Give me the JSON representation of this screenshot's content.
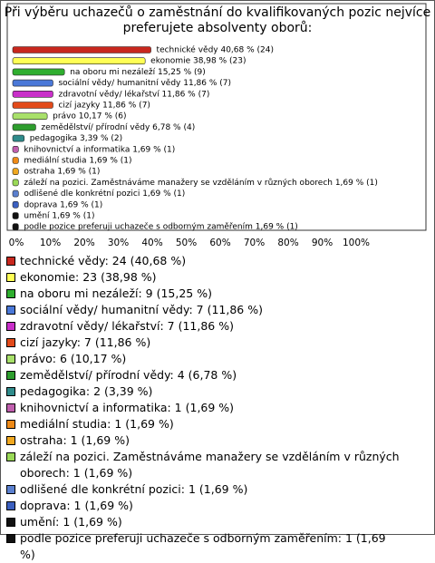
{
  "chart_data": {
    "type": "bar",
    "orientation": "horizontal",
    "title": [
      "Při výběru uchazečů o zaměstnání do kvalifikovaných pozic nejvíce",
      "preferujete absolventy oborů:"
    ],
    "values": [
      40.68,
      38.98,
      15.25,
      11.86,
      11.86,
      11.86,
      10.17,
      6.78,
      3.39,
      1.69,
      1.69,
      1.69,
      1.69,
      1.69,
      1.69,
      1.69,
      1.69
    ],
    "value_labels": [
      "technické vědy 40,68 % (24)",
      "ekonomie 38,98 % (23)",
      "na oboru mi nezáleží 15,25 % (9)",
      "sociální vědy/ humanitní vědy 11,86 % (7)",
      "zdravotní vědy/ lékařství 11,86 % (7)",
      "cizí jazyky 11,86 % (7)",
      "právo 10,17 % (6)",
      "zemědělství/ přírodní vědy 6,78 % (4)",
      "pedagogika 3,39 % (2)",
      "knihovnictví a informatika 1,69 % (1)",
      "mediální studia 1,69 % (1)",
      "ostraha 1,69 % (1)",
      "záleží na pozici. Zaměstnáváme manažery se vzděláním v různých oborech 1,69 % (1)",
      "odlišené dle konkrétní pozici 1,69 % (1)",
      "doprava 1,69 % (1)",
      "umění 1,69 % (1)",
      "podle pozice preferuji uchazeče s odborným zaměřením 1,69 % (1)"
    ],
    "legend_labels": [
      "technické vědy: 24 (40,68 %)",
      "ekonomie: 23 (38,98 %)",
      "na oboru mi nezáleží: 9 (15,25 %)",
      "sociální vědy/ humanitní vědy: 7 (11,86 %)",
      "zdravotní vědy/ lékařství: 7 (11,86 %)",
      "cizí jazyky: 7 (11,86 %)",
      "právo: 6 (10,17 %)",
      "zemědělství/ přírodní vědy: 4 (6,78 %)",
      "pedagogika: 2 (3,39 %)",
      "knihovnictví a informatika: 1 (1,69 %)",
      "mediální studia: 1 (1,69 %)",
      "ostraha: 1 (1,69 %)",
      "záleží na pozici. Zaměstnáváme manažery se vzděláním v různých oborech: 1 (1,69 %)",
      "odlišené dle konkrétní pozici: 1 (1,69 %)",
      "doprava: 1 (1,69 %)",
      "umění: 1 (1,69 %)",
      "podle pozice preferuji uchazeče s odborným zaměřením: 1 (1,69 %)"
    ],
    "colors": [
      "#c8281e",
      "#ffff55",
      "#2fae2f",
      "#4a78d8",
      "#c92fc9",
      "#e24a1a",
      "#a8e06a",
      "#2e9e2e",
      "#2f8b8b",
      "#c05fae",
      "#ee8a18",
      "#f0a820",
      "#9ad957",
      "#5b80cf",
      "#3b5fbf",
      "#111111",
      "#111111"
    ],
    "xlim": [
      0,
      100
    ],
    "xticks": [
      {
        "value": 0,
        "label": "0%"
      },
      {
        "value": 10,
        "label": "10%"
      },
      {
        "value": 20,
        "label": "20%"
      },
      {
        "value": 30,
        "label": "30%"
      },
      {
        "value": 40,
        "label": "40%"
      },
      {
        "value": 50,
        "label": "50%"
      },
      {
        "value": 60,
        "label": "60%"
      },
      {
        "value": 70,
        "label": "70%"
      },
      {
        "value": 80,
        "label": "80%"
      },
      {
        "value": 90,
        "label": "90%"
      },
      {
        "value": 100,
        "label": "100%"
      }
    ]
  }
}
